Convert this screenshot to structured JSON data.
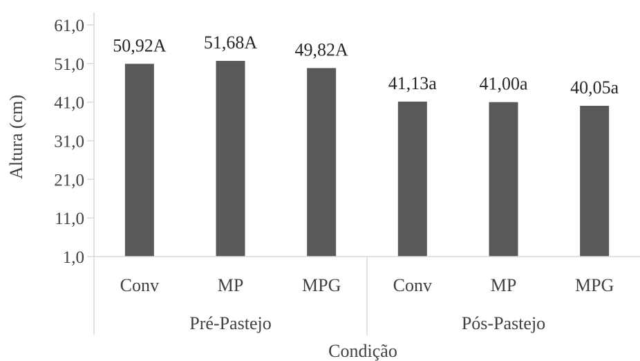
{
  "chart_data": {
    "type": "bar",
    "title": "",
    "xlabel": "Condição",
    "ylabel": "Altura (cm)",
    "ylim": [
      1,
      61
    ],
    "yticks": [
      "1,0",
      "11,0",
      "21,0",
      "31,0",
      "41,0",
      "51,0",
      "61,0"
    ],
    "grid": false,
    "legend": "none",
    "bar_color": "#595959",
    "groups": [
      {
        "name": "Pré-Pastejo",
        "categories": [
          "Conv",
          "MP",
          "MPG"
        ]
      },
      {
        "name": "Pós-Pastejo",
        "categories": [
          "Conv",
          "MP",
          "MPG"
        ]
      }
    ],
    "categories": [
      "Conv",
      "MP",
      "MPG",
      "Conv",
      "MP",
      "MPG"
    ],
    "values": [
      50.92,
      51.68,
      49.82,
      41.13,
      41.0,
      40.05
    ],
    "data_labels": [
      "50,92A",
      "51,68A",
      "49,82A",
      "41,13a",
      "41,00a",
      "40,05a"
    ]
  }
}
